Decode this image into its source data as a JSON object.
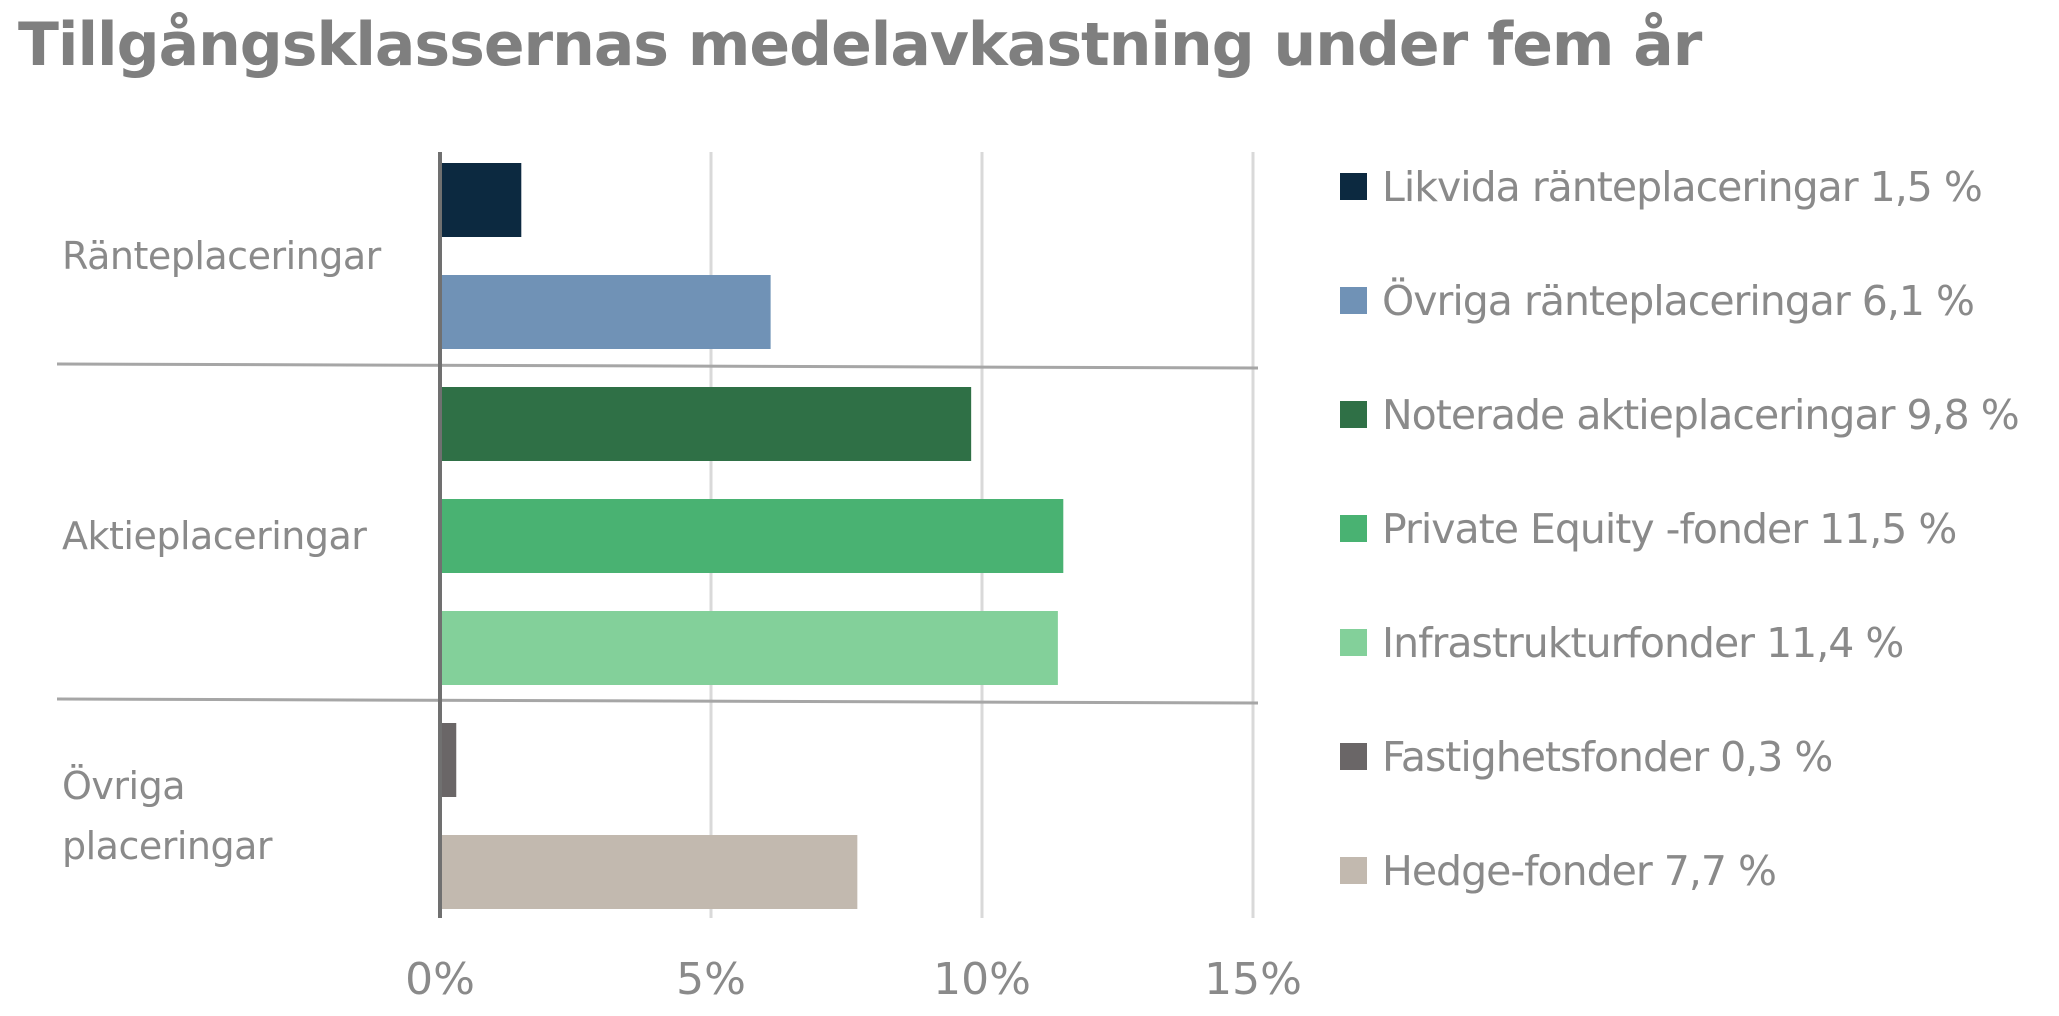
{
  "chart_data": {
    "type": "bar",
    "orientation": "horizontal",
    "title": "Tillgångsklassernas medelavkastning under fem år",
    "xlabel": "",
    "ylabel": "",
    "xlim": [
      0,
      15
    ],
    "x_ticks": [
      {
        "value": 0,
        "label": "0%"
      },
      {
        "value": 5,
        "label": "5%"
      },
      {
        "value": 10,
        "label": "10%"
      },
      {
        "value": 15,
        "label": "15%"
      }
    ],
    "grid": true,
    "legend_position": "right",
    "groups": [
      {
        "label": [
          "Ränteplaceringar"
        ],
        "series": [
          0,
          1
        ]
      },
      {
        "label": [
          "Aktieplaceringar"
        ],
        "series": [
          2,
          3,
          4
        ]
      },
      {
        "label": [
          "Övriga",
          "placeringar"
        ],
        "series": [
          5,
          6
        ]
      }
    ],
    "series": [
      {
        "name": "Likvida ränteplaceringar 1,5 %",
        "value": 1.5,
        "color": "#0c2940"
      },
      {
        "name": "Övriga ränteplaceringar 6,1 %",
        "value": 6.1,
        "color": "#7092b6"
      },
      {
        "name": "Noterade aktieplaceringar 9,8 %",
        "value": 9.8,
        "color": "#2f7046"
      },
      {
        "name": "Private Equity -fonder 11,5 %",
        "value": 11.5,
        "color": "#49b272"
      },
      {
        "name": "Infrastrukturfonder 11,4 %",
        "value": 11.4,
        "color": "#83d09a"
      },
      {
        "name": "Fastighetsfonder 0,3 %",
        "value": 0.3,
        "color": "#6a6667"
      },
      {
        "name": "Hedge-fonder 7,7 %",
        "value": 7.7,
        "color": "#c2b9af"
      }
    ]
  }
}
